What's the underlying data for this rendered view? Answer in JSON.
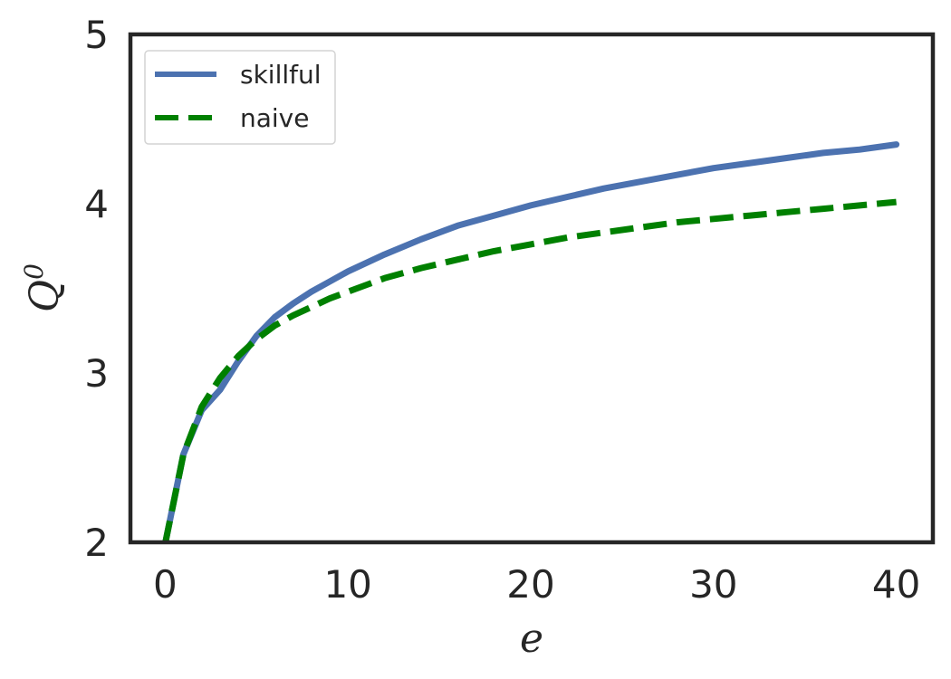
{
  "chart_data": {
    "type": "line",
    "xlabel": "e",
    "ylabel_main": "Q",
    "ylabel_sup": "0",
    "xlim": [
      -1.9,
      42
    ],
    "ylim": [
      2,
      5
    ],
    "xticks": [
      0,
      10,
      20,
      30,
      40
    ],
    "yticks": [
      2,
      3,
      4,
      5
    ],
    "grid": false,
    "legend_position": "top-left",
    "series": [
      {
        "name": "skillful",
        "color": "#4c72b0",
        "style": "solid",
        "x": [
          0,
          1,
          2,
          3,
          4,
          5,
          6,
          7,
          8,
          9,
          10,
          12,
          14,
          16,
          18,
          20,
          22,
          24,
          26,
          28,
          30,
          32,
          34,
          36,
          38,
          40
        ],
        "y": [
          1.99,
          2.52,
          2.78,
          2.9,
          3.07,
          3.22,
          3.33,
          3.41,
          3.48,
          3.54,
          3.6,
          3.7,
          3.79,
          3.87,
          3.93,
          3.99,
          4.04,
          4.09,
          4.13,
          4.17,
          4.21,
          4.24,
          4.27,
          4.3,
          4.32,
          4.35
        ]
      },
      {
        "name": "naive",
        "color": "#008000",
        "style": "dashed",
        "x": [
          0,
          1,
          2,
          3,
          4,
          5,
          6,
          7,
          8,
          9,
          10,
          12,
          14,
          16,
          18,
          20,
          22,
          24,
          26,
          28,
          30,
          32,
          34,
          36,
          38,
          40
        ],
        "y": [
          1.99,
          2.52,
          2.8,
          2.97,
          3.1,
          3.2,
          3.28,
          3.34,
          3.39,
          3.44,
          3.48,
          3.56,
          3.62,
          3.67,
          3.72,
          3.76,
          3.8,
          3.83,
          3.86,
          3.89,
          3.91,
          3.93,
          3.95,
          3.97,
          3.99,
          4.01
        ]
      }
    ]
  }
}
